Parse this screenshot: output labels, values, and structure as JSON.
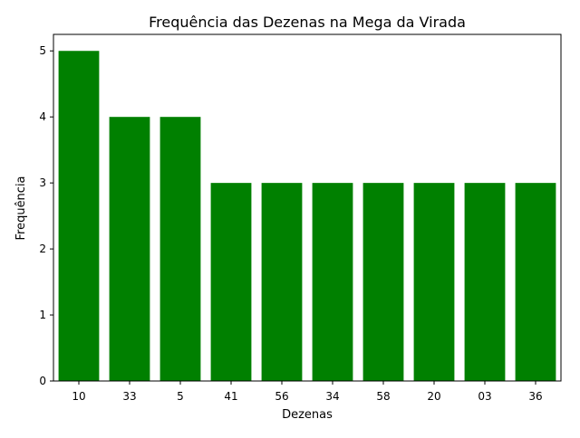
{
  "chart_data": {
    "type": "bar",
    "title": "Frequência das Dezenas na Mega da Virada",
    "xlabel": "Dezenas",
    "ylabel": "Frequência",
    "categories": [
      "10",
      "33",
      "5",
      "41",
      "56",
      "34",
      "58",
      "20",
      "03",
      "36"
    ],
    "values": [
      5,
      4,
      4,
      3,
      3,
      3,
      3,
      3,
      3,
      3
    ],
    "ylim": [
      0,
      5.25
    ],
    "yticks": [
      "0",
      "1",
      "2",
      "3",
      "4",
      "5"
    ],
    "bar_color": "#008000",
    "grid": false,
    "legend": "none"
  }
}
